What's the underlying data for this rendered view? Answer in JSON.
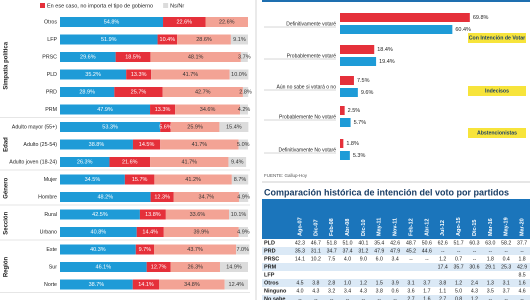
{
  "chart_data": [
    {
      "type": "bar",
      "orientation": "horizontal",
      "stacked": true,
      "xlim": [
        0,
        100
      ],
      "groups": [
        "Simpatía política",
        "Edad",
        "Género",
        "Sección",
        "Región"
      ],
      "categories": [
        "Otros",
        "LFP",
        "PRSC",
        "PLD",
        "PRD",
        "PRM",
        "Adulto mayor (55+)",
        "Adulto (25-54)",
        "Adulto joven (18-24)",
        "Mujer",
        "Hombre",
        "Rural",
        "Urbano",
        "Este",
        "Sur",
        "Norte"
      ],
      "series": [
        {
          "color": "#1e9bd7",
          "values": [
            54.8,
            51.9,
            29.6,
            35.2,
            28.9,
            47.9,
            53.3,
            38.8,
            26.3,
            34.5,
            48.2,
            42.5,
            40.8,
            40.3,
            46.1,
            38.7
          ],
          "value_labels": [
            "54.8%",
            "51.9%",
            "29.6%",
            "35.2%",
            "28.9%",
            "47.9%",
            "53.3%",
            "38.8%",
            "26.3%",
            "34.5%",
            "48.2%",
            "42.5%",
            "40.8%",
            "40.3%",
            "46.1%",
            "38.7%"
          ]
        },
        {
          "name": "En ese caso, no importa el tipo de gobierno",
          "color": "#e5303a",
          "values": [
            22.6,
            10.4,
            18.5,
            13.3,
            25.7,
            13.3,
            5.6,
            14.5,
            21.6,
            15.7,
            12.3,
            13.8,
            14.4,
            9.7,
            12.7,
            14.1
          ],
          "value_labels": [
            "22.6%",
            "10.4%",
            "18.5%",
            "13.3%",
            "25.7%",
            "13.3%",
            "5.6%",
            "14.5%",
            "21.6%",
            "15.7%",
            "12.3%",
            "13.8%",
            "14.4%",
            "9.7%",
            "12.7%",
            "14.1%"
          ]
        },
        {
          "color": "#f3a395",
          "values": [
            22.6,
            28.6,
            48.1,
            41.7,
            42.7,
            34.6,
            25.9,
            41.7,
            41.7,
            41.2,
            34.7,
            33.6,
            39.9,
            43.7,
            26.3,
            34.8
          ],
          "value_labels": [
            "22.6%",
            "28.6%",
            "48.1%",
            "41.7%",
            "42.7%",
            "34.6%",
            "25.9%",
            "41.7%",
            "41.7%",
            "41.2%",
            "34.7%",
            "33.6%",
            "39.9%",
            "43.7%",
            "26.3%",
            "34.8%"
          ]
        },
        {
          "name": "Ns/Nr",
          "color": "#dcdcdc",
          "values": [
            null,
            9.1,
            3.7,
            10.0,
            2.8,
            4.2,
            15.4,
            5.0,
            9.4,
            8.7,
            4.9,
            10.1,
            4.9,
            7.0,
            14.9,
            12.4
          ],
          "value_labels": [
            null,
            "9.1%",
            "3.7%",
            "10.0%",
            "2.8%",
            "4.2%",
            "15.4%",
            "5.0%",
            "9.4%",
            "8.7%",
            "4.9%",
            "10.1%",
            "4.9%",
            "7.0%",
            "14.9%",
            "12.4%"
          ]
        }
      ]
    },
    {
      "type": "bar",
      "orientation": "horizontal",
      "xlim": [
        0,
        100
      ],
      "categories": [
        "Definitivamente votaré",
        "Probablemente votaré",
        "Aún no sabe si votará o no",
        "Probablemente No votaré",
        "Definitivamente No votaré"
      ],
      "series": [
        {
          "color": "#e5303a",
          "values": [
            69.8,
            18.4,
            7.5,
            2.5,
            1.8
          ],
          "value_labels": [
            "69.8%",
            "18.4%",
            "7.5%",
            "2.5%",
            "1.8%"
          ]
        },
        {
          "color": "#1e9bd7",
          "values": [
            60.4,
            19.4,
            9.6,
            5.7,
            5.3
          ],
          "value_labels": [
            "60.4%",
            "19.4%",
            "9.6%",
            "5.7%",
            "5.3%"
          ]
        }
      ],
      "annotations": [
        "Con Intención de Votar",
        "Indecisos",
        "Abstencionistas"
      ],
      "source": "FUENTE: Gallup-Hoy"
    }
  ],
  "table": {
    "title": "Comparación histórica de intención del voto por partidos",
    "columns": [
      "Ago-07",
      "Dic-07",
      "Feb-08",
      "Abr-08",
      "Dic-10",
      "May-11",
      "Nov-11",
      "Feb-12",
      "Abr-12",
      "Jul-12",
      "Ago-15",
      "Dic-15",
      "Mar-16",
      "May-19",
      "Mar-20"
    ],
    "rows": [
      {
        "label": "PLD",
        "cells": [
          "42.3",
          "46.7",
          "51.8",
          "51.0",
          "40.1",
          "35.4",
          "42.6",
          "48.7",
          "50.6",
          "62.6",
          "51.7",
          "60.3",
          "63.0",
          "58.2",
          "37.7"
        ]
      },
      {
        "label": "PRD",
        "cells": [
          "35.3",
          "31.1",
          "34.7",
          "37.4",
          "31.2",
          "47.9",
          "47.9",
          "45.2",
          "44.6",
          "--",
          "--",
          "--",
          "--",
          "--",
          "--"
        ]
      },
      {
        "label": "PRSC",
        "cells": [
          "14.1",
          "10.2",
          "7.5",
          "4.0",
          "9.0",
          "6.0",
          "3.4",
          "--",
          "--",
          "1.2",
          "0.7",
          "--",
          "1.8",
          "0.4",
          "1.8"
        ]
      },
      {
        "label": "PRM",
        "cells": [
          null,
          null,
          null,
          null,
          null,
          null,
          null,
          null,
          null,
          "17.4",
          "35.7",
          "30.6",
          "29.1",
          "25.3",
          "42.9"
        ]
      },
      {
        "label": "LFP",
        "cells": [
          null,
          null,
          null,
          null,
          null,
          null,
          null,
          null,
          null,
          null,
          null,
          null,
          null,
          null,
          "8.5"
        ]
      },
      {
        "label": "Otros",
        "cells": [
          "4.5",
          "3.8",
          "2.8",
          "1.0",
          "1.2",
          "1.5",
          "3.9",
          "3.1",
          "3.7",
          "3.8",
          "1.2",
          "2.4",
          "1.3",
          "3.1",
          "1.6"
        ]
      },
      {
        "label": "Ninguno",
        "cells": [
          "4.0",
          "4.3",
          "3.2",
          "3.4",
          "4.3",
          "3.8",
          "0.6",
          "3.6",
          "1.7",
          "1.1",
          "5.0",
          "4.3",
          "3.5",
          "3.7",
          "4.6"
        ]
      },
      {
        "label": "No sabe",
        "cells": [
          "--",
          "--",
          "--",
          "--",
          "--",
          "--",
          "--",
          "2.7",
          "1.6",
          "2.7",
          "0.8",
          "1.2",
          "--",
          "--",
          "--"
        ]
      }
    ]
  }
}
